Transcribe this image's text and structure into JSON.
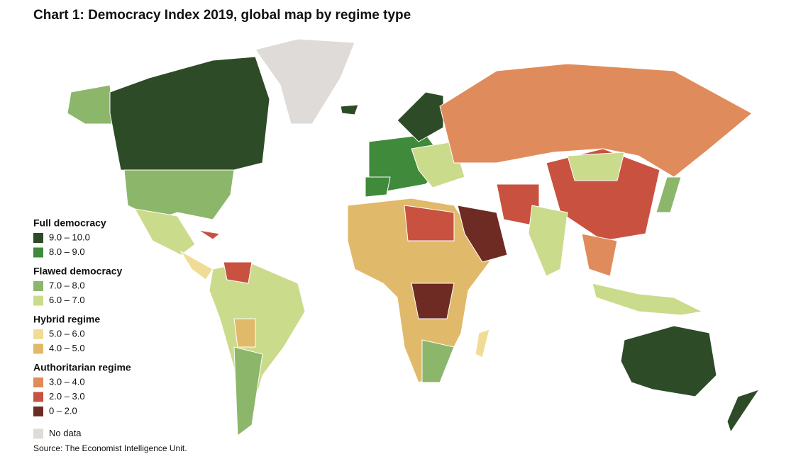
{
  "header": {
    "title": "Chart 1: Democracy Index 2019, global map by regime type"
  },
  "legend": [
    {
      "group": "Full democracy",
      "items": [
        {
          "label": "9.0 – 10.0",
          "color": "#2e4b27"
        },
        {
          "label": "8.0 – 9.0",
          "color": "#3f8a3b"
        }
      ]
    },
    {
      "group": "Flawed democracy",
      "items": [
        {
          "label": "7.0 – 8.0",
          "color": "#8cb66a"
        },
        {
          "label": "6.0 – 7.0",
          "color": "#cbdb8c"
        }
      ]
    },
    {
      "group": "Hybrid regime",
      "items": [
        {
          "label": "5.0 – 6.0",
          "color": "#f1dc97"
        },
        {
          "label": "4.0 – 5.0",
          "color": "#e1b96a"
        }
      ]
    },
    {
      "group": "Authoritarian regime",
      "items": [
        {
          "label": "3.0 – 4.0",
          "color": "#e08b5b"
        },
        {
          "label": "2.0 – 3.0",
          "color": "#c8513f"
        },
        {
          "label": "0 – 2.0",
          "color": "#6d2b23"
        }
      ]
    },
    {
      "group": null,
      "items": [
        {
          "label": "No data",
          "color": "#dedbd8"
        }
      ]
    }
  ],
  "source": "Source: The Economist Intelligence Unit."
}
